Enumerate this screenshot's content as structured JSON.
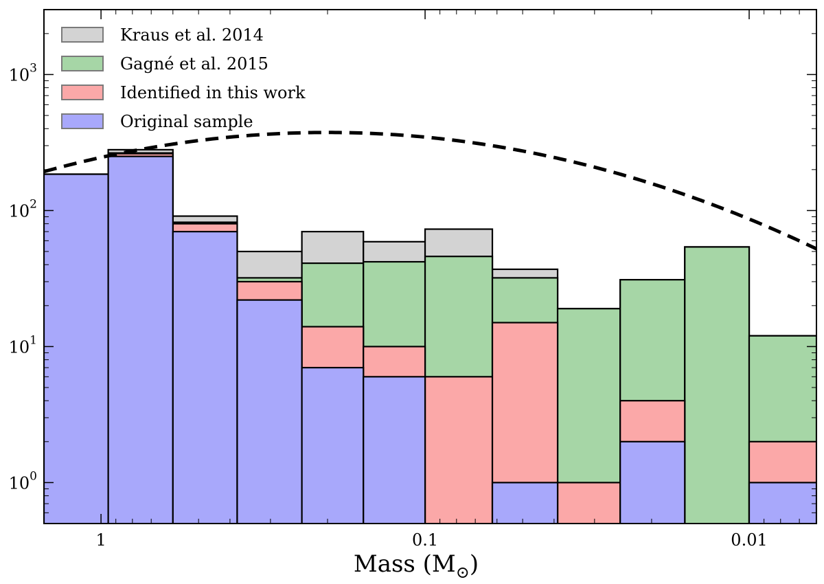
{
  "chart_data": {
    "type": "histogram",
    "xlabel": "Mass (M⊙)",
    "xlabel_main": "Mass (M",
    "xlabel_close": ")",
    "xlabel_symbol": "⊙",
    "xscale": "log-reversed",
    "xlim": [
      1.5,
      0.0062
    ],
    "yscale": "log",
    "ylim": [
      0.5,
      3000
    ],
    "x_ticks": [
      {
        "value": 1,
        "label": "1"
      },
      {
        "value": 0.1,
        "label": "0.1"
      },
      {
        "value": 0.01,
        "label": "0.01"
      }
    ],
    "y_ticks": [
      {
        "value": 1,
        "base": "10",
        "exp": "0"
      },
      {
        "value": 10,
        "base": "10",
        "exp": "1"
      },
      {
        "value": 100,
        "base": "10",
        "exp": "2"
      },
      {
        "value": 1000,
        "base": "10",
        "exp": "3"
      }
    ],
    "bin_edges": [
      1.5,
      0.95,
      0.6,
      0.38,
      0.24,
      0.155,
      0.1,
      0.062,
      0.039,
      0.025,
      0.0158,
      0.01,
      0.0062
    ],
    "series": [
      {
        "name": "Kraus et al. 2014",
        "color": "#d3d3d3",
        "values": [
          185,
          280,
          91,
          50,
          70,
          59,
          73,
          37,
          19,
          31,
          54,
          12
        ]
      },
      {
        "name": "Gagné et al. 2015",
        "color": "#a6d6a6",
        "values": [
          185,
          265,
          82,
          32,
          41,
          42,
          46,
          32,
          19,
          31,
          54,
          12
        ]
      },
      {
        "name": "Identified in this work",
        "color": "#fba8a8",
        "values": [
          185,
          262,
          80,
          30,
          14,
          10,
          6,
          15,
          1,
          4,
          0,
          2
        ]
      },
      {
        "name": "Original sample",
        "color": "#a8a8fb",
        "values": [
          185,
          250,
          70,
          22,
          7,
          6,
          0,
          1,
          0,
          2,
          0,
          1
        ]
      }
    ],
    "reference_curve": {
      "style": "dashed",
      "type": "lognormal",
      "peak_mass": 0.2,
      "peak_value": 375,
      "sigma_dex": 0.76
    }
  }
}
